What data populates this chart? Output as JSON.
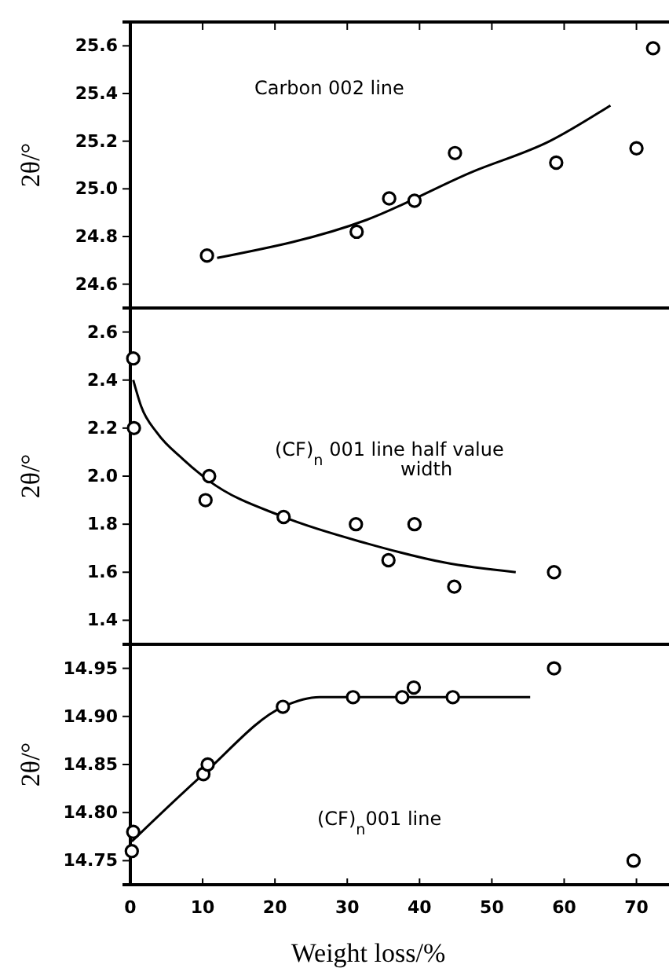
{
  "chart_data": [
    {
      "type": "scatter",
      "ylabel": "2θ/°",
      "xlim": [
        0,
        74.5
      ],
      "xticks": [
        10,
        20,
        30,
        40,
        50,
        60,
        70
      ],
      "ylim": [
        24.5,
        25.7
      ],
      "yticks": [
        24.6,
        24.8,
        {
          "value": 25,
          "label": "25.0"
        },
        25.2,
        25.4,
        25.6
      ],
      "tick_labels": "y",
      "annotations": [
        "Carbon 002 line"
      ],
      "series": [
        {
          "color": "#000000",
          "marker": "circle",
          "x": [
            10.6,
            31.3,
            35.8,
            39.3,
            44.9,
            58.9,
            70.0,
            72.3
          ],
          "values": [
            24.72,
            24.82,
            24.96,
            24.95,
            25.15,
            25.11,
            25.17,
            25.59
          ]
        },
        {
          "type": "line",
          "color": "#000000",
          "x": [
            12.0,
            32.7,
            47.2,
            58.0,
            66.4
          ],
          "values": [
            24.71,
            24.87,
            25.07,
            25.2,
            25.35
          ]
        }
      ]
    },
    {
      "type": "scatter",
      "ylabel": "2θ/°",
      "xlim": [
        0,
        74.5
      ],
      "ylim": [
        1.3,
        2.7
      ],
      "yticks": [
        1.4,
        1.6,
        1.8,
        {
          "value": 2,
          "label": "2.0"
        },
        2.2,
        2.4,
        2.6
      ],
      "tick_labels": "y",
      "annotations": [
        "(CF)$_{n}$ 001 line half value width"
      ],
      "series": [
        {
          "color": "#000000",
          "marker": "circle",
          "x": [
            0.4,
            0.5,
            10.9,
            10.4,
            21.2,
            31.2,
            39.3,
            35.7,
            44.8,
            58.6
          ],
          "values": [
            2.49,
            2.2,
            2.0,
            1.9,
            1.83,
            1.8,
            1.8,
            1.65,
            1.54,
            1.6
          ]
        },
        {
          "type": "line",
          "color": "#000000",
          "x": [
            0.4,
            1.5,
            3.7,
            7.3,
            10.9,
            21.2,
            32.7,
            43.5,
            53.3
          ],
          "values": [
            2.4,
            2.29,
            2.18,
            2.07,
            1.98,
            1.83,
            1.72,
            1.64,
            1.6
          ]
        }
      ]
    },
    {
      "type": "scatter",
      "ylabel": "2θ/°",
      "xlabel": "Weight loss/%",
      "xlim": [
        0,
        74.5
      ],
      "xticks": [
        0,
        10,
        20,
        30,
        40,
        50,
        60,
        70
      ],
      "ylim": [
        14.725,
        14.975
      ],
      "yticks": [
        14.75,
        {
          "value": 14.8,
          "label": "14.80"
        },
        14.85,
        {
          "value": 14.9,
          "label": "14.90"
        },
        14.95
      ],
      "annotations": [
        "(CF)$_{n}$001 line"
      ],
      "series": [
        {
          "color": "#000000",
          "marker": "circle",
          "x": [
            0.2,
            0.4,
            10.1,
            10.7,
            21.1,
            30.8,
            37.6,
            39.2,
            44.6,
            58.6,
            69.6
          ],
          "values": [
            14.76,
            14.78,
            14.84,
            14.85,
            14.91,
            14.92,
            14.92,
            14.93,
            14.92,
            14.95,
            14.75
          ]
        },
        {
          "type": "line",
          "color": "#000000",
          "x": [
            0.2,
            10.1,
            21.1,
            26.2,
            55.3
          ],
          "values": [
            14.77,
            14.84,
            14.91,
            14.92,
            14.92
          ]
        }
      ]
    }
  ]
}
